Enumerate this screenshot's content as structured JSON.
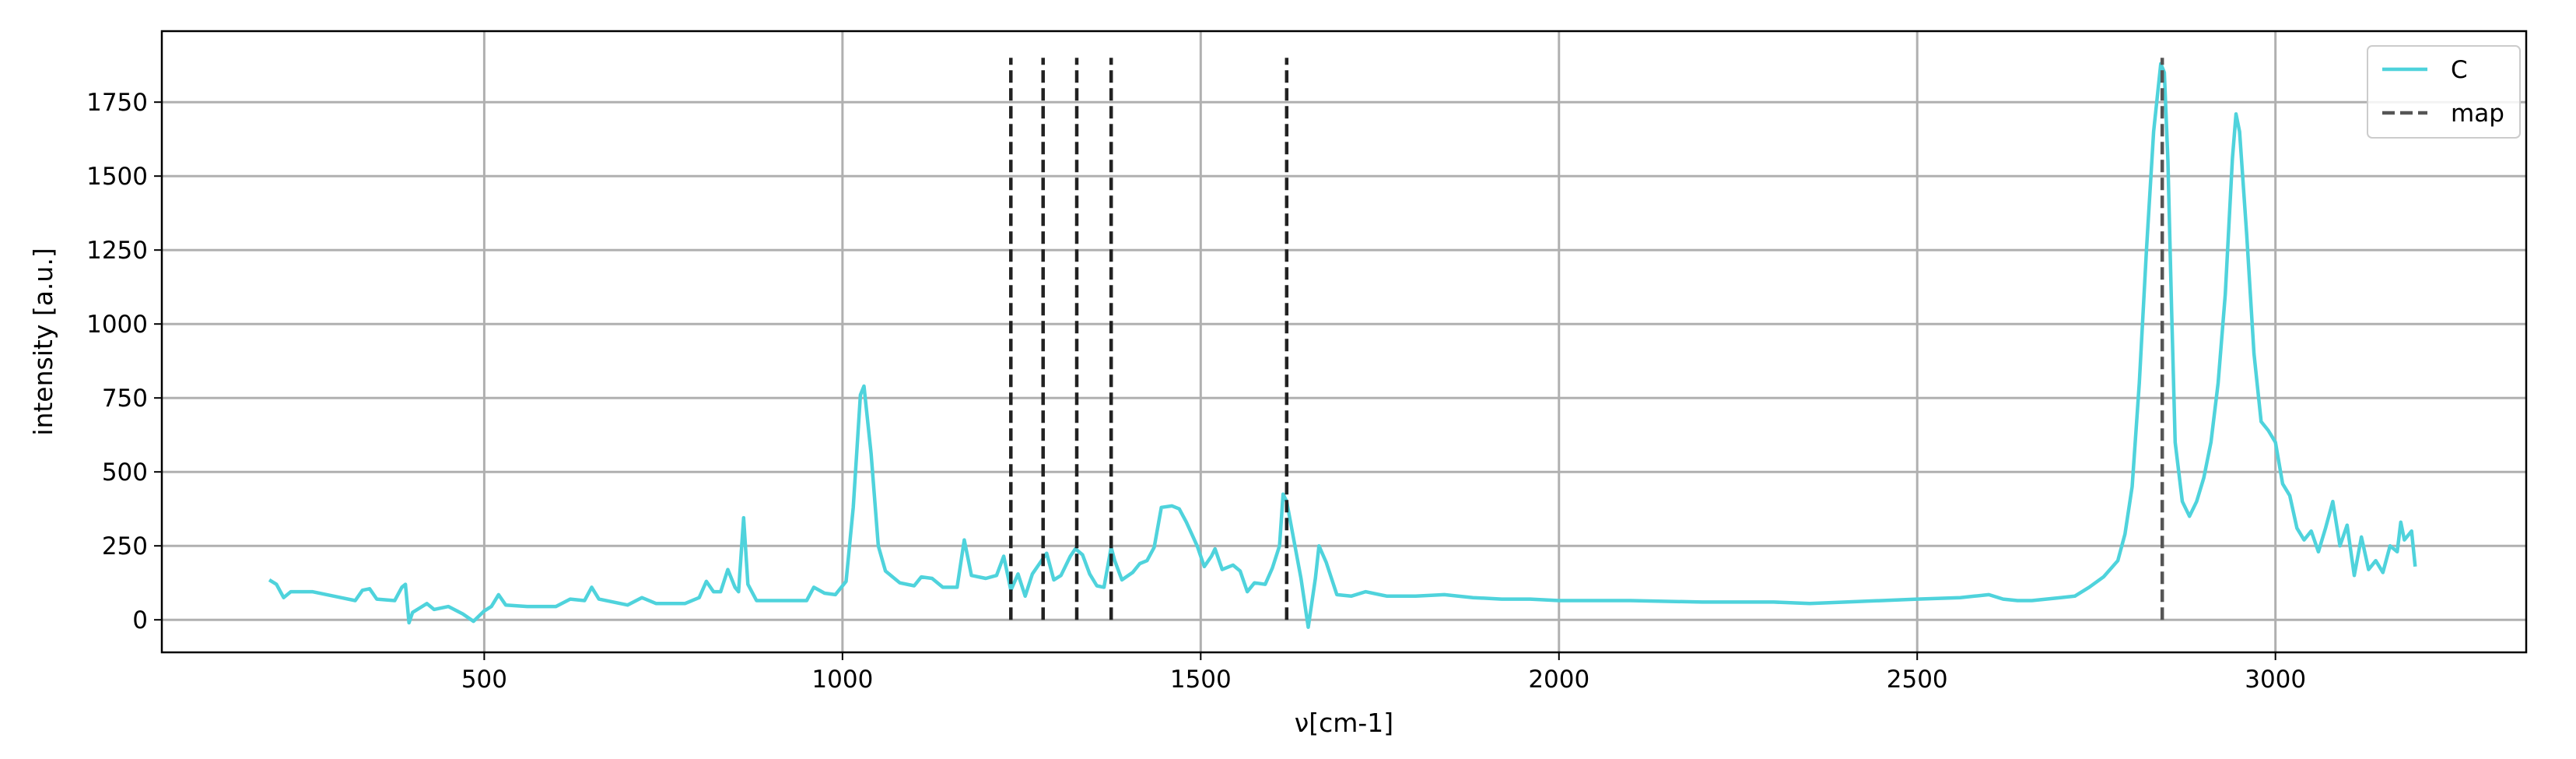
{
  "chart_data": {
    "type": "line",
    "title": "",
    "xlabel": "ν[cm-1]",
    "ylabel": "intensity [a.u.]",
    "xlim": [
      50,
      3350
    ],
    "ylim": [
      -110,
      1990
    ],
    "grid": true,
    "legend_position": "top-right",
    "x_ticks": [
      500,
      1000,
      1500,
      2000,
      2500,
      3000
    ],
    "y_ticks": [
      0,
      250,
      500,
      750,
      1000,
      1250,
      1500,
      1750
    ],
    "series": [
      {
        "name": "C",
        "color": "#4fd3dc",
        "style": "solid",
        "points": [
          [
            200,
            135
          ],
          [
            210,
            120
          ],
          [
            220,
            75
          ],
          [
            230,
            95
          ],
          [
            260,
            95
          ],
          [
            300,
            75
          ],
          [
            320,
            65
          ],
          [
            330,
            100
          ],
          [
            340,
            105
          ],
          [
            350,
            70
          ],
          [
            375,
            65
          ],
          [
            385,
            110
          ],
          [
            390,
            120
          ],
          [
            395,
            -10
          ],
          [
            400,
            25
          ],
          [
            410,
            40
          ],
          [
            420,
            55
          ],
          [
            430,
            35
          ],
          [
            450,
            45
          ],
          [
            470,
            20
          ],
          [
            485,
            -5
          ],
          [
            500,
            30
          ],
          [
            510,
            45
          ],
          [
            520,
            85
          ],
          [
            530,
            50
          ],
          [
            560,
            45
          ],
          [
            600,
            45
          ],
          [
            620,
            70
          ],
          [
            640,
            65
          ],
          [
            650,
            110
          ],
          [
            660,
            70
          ],
          [
            700,
            50
          ],
          [
            720,
            75
          ],
          [
            740,
            55
          ],
          [
            780,
            55
          ],
          [
            800,
            75
          ],
          [
            810,
            130
          ],
          [
            820,
            95
          ],
          [
            830,
            95
          ],
          [
            840,
            170
          ],
          [
            850,
            110
          ],
          [
            855,
            95
          ],
          [
            862,
            345
          ],
          [
            868,
            120
          ],
          [
            880,
            65
          ],
          [
            950,
            65
          ],
          [
            960,
            110
          ],
          [
            975,
            90
          ],
          [
            990,
            85
          ],
          [
            1005,
            130
          ],
          [
            1015,
            380
          ],
          [
            1025,
            760
          ],
          [
            1030,
            790
          ],
          [
            1040,
            560
          ],
          [
            1050,
            250
          ],
          [
            1060,
            165
          ],
          [
            1080,
            125
          ],
          [
            1100,
            115
          ],
          [
            1110,
            145
          ],
          [
            1125,
            140
          ],
          [
            1140,
            110
          ],
          [
            1160,
            110
          ],
          [
            1170,
            270
          ],
          [
            1180,
            150
          ],
          [
            1200,
            140
          ],
          [
            1215,
            150
          ],
          [
            1225,
            215
          ],
          [
            1235,
            100
          ],
          [
            1245,
            155
          ],
          [
            1255,
            80
          ],
          [
            1265,
            155
          ],
          [
            1275,
            190
          ],
          [
            1285,
            225
          ],
          [
            1295,
            135
          ],
          [
            1305,
            150
          ],
          [
            1318,
            215
          ],
          [
            1325,
            240
          ],
          [
            1335,
            220
          ],
          [
            1345,
            155
          ],
          [
            1355,
            115
          ],
          [
            1365,
            110
          ],
          [
            1375,
            245
          ],
          [
            1380,
            200
          ],
          [
            1390,
            135
          ],
          [
            1405,
            160
          ],
          [
            1415,
            190
          ],
          [
            1425,
            200
          ],
          [
            1435,
            245
          ],
          [
            1445,
            380
          ],
          [
            1460,
            385
          ],
          [
            1470,
            375
          ],
          [
            1480,
            330
          ],
          [
            1495,
            250
          ],
          [
            1505,
            180
          ],
          [
            1515,
            215
          ],
          [
            1520,
            240
          ],
          [
            1530,
            170
          ],
          [
            1545,
            185
          ],
          [
            1555,
            165
          ],
          [
            1565,
            95
          ],
          [
            1575,
            125
          ],
          [
            1590,
            120
          ],
          [
            1600,
            175
          ],
          [
            1610,
            250
          ],
          [
            1615,
            425
          ],
          [
            1620,
            400
          ],
          [
            1630,
            270
          ],
          [
            1640,
            140
          ],
          [
            1650,
            -25
          ],
          [
            1660,
            140
          ],
          [
            1665,
            250
          ],
          [
            1675,
            195
          ],
          [
            1690,
            85
          ],
          [
            1710,
            80
          ],
          [
            1730,
            95
          ],
          [
            1760,
            80
          ],
          [
            1800,
            80
          ],
          [
            1840,
            85
          ],
          [
            1880,
            75
          ],
          [
            1920,
            70
          ],
          [
            1960,
            70
          ],
          [
            2000,
            65
          ],
          [
            2100,
            65
          ],
          [
            2200,
            60
          ],
          [
            2300,
            60
          ],
          [
            2350,
            55
          ],
          [
            2400,
            60
          ],
          [
            2500,
            70
          ],
          [
            2560,
            75
          ],
          [
            2580,
            80
          ],
          [
            2600,
            85
          ],
          [
            2620,
            70
          ],
          [
            2640,
            65
          ],
          [
            2660,
            65
          ],
          [
            2680,
            70
          ],
          [
            2700,
            75
          ],
          [
            2720,
            80
          ],
          [
            2740,
            110
          ],
          [
            2760,
            145
          ],
          [
            2780,
            200
          ],
          [
            2790,
            290
          ],
          [
            2800,
            450
          ],
          [
            2810,
            800
          ],
          [
            2820,
            1250
          ],
          [
            2830,
            1650
          ],
          [
            2840,
            1880
          ],
          [
            2845,
            1850
          ],
          [
            2850,
            1550
          ],
          [
            2855,
            1050
          ],
          [
            2860,
            600
          ],
          [
            2870,
            400
          ],
          [
            2880,
            350
          ],
          [
            2890,
            400
          ],
          [
            2900,
            480
          ],
          [
            2910,
            600
          ],
          [
            2920,
            800
          ],
          [
            2930,
            1100
          ],
          [
            2940,
            1560
          ],
          [
            2945,
            1710
          ],
          [
            2950,
            1650
          ],
          [
            2960,
            1300
          ],
          [
            2970,
            900
          ],
          [
            2980,
            670
          ],
          [
            2990,
            640
          ],
          [
            3000,
            600
          ],
          [
            3010,
            460
          ],
          [
            3020,
            420
          ],
          [
            3030,
            310
          ],
          [
            3040,
            270
          ],
          [
            3050,
            300
          ],
          [
            3060,
            230
          ],
          [
            3070,
            310
          ],
          [
            3080,
            400
          ],
          [
            3090,
            250
          ],
          [
            3100,
            320
          ],
          [
            3110,
            150
          ],
          [
            3120,
            280
          ],
          [
            3130,
            170
          ],
          [
            3140,
            200
          ],
          [
            3150,
            160
          ],
          [
            3160,
            250
          ],
          [
            3170,
            230
          ],
          [
            3175,
            330
          ],
          [
            3180,
            270
          ],
          [
            3190,
            300
          ],
          [
            3195,
            180
          ]
        ]
      },
      {
        "name": "map",
        "color": "#333333",
        "style": "dashed",
        "vlines": [
          {
            "x": 1235,
            "ymin": 0,
            "ymax": 1900
          },
          {
            "x": 1280,
            "ymin": 0,
            "ymax": 1900
          },
          {
            "x": 1327,
            "ymin": 0,
            "ymax": 1900
          },
          {
            "x": 1375,
            "ymin": 0,
            "ymax": 1900
          },
          {
            "x": 1620,
            "ymin": 0,
            "ymax": 1900
          },
          {
            "x": 2842,
            "ymin": 0,
            "ymax": 1900
          }
        ]
      }
    ]
  }
}
